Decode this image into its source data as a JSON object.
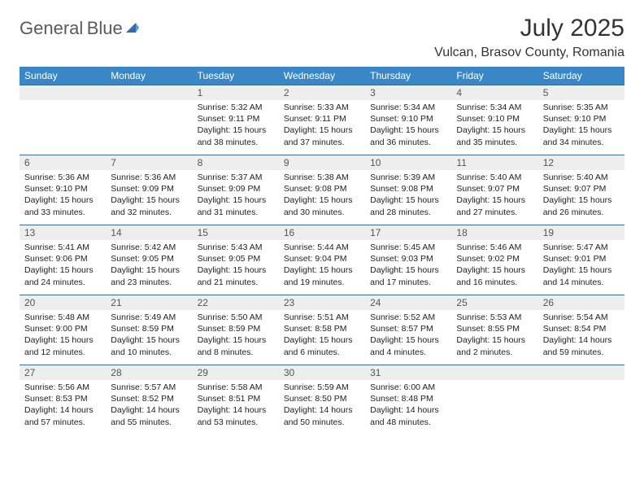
{
  "brand": {
    "word1": "General",
    "word2": "Blue"
  },
  "title": "July 2025",
  "subtitle": "Vulcan, Brasov County, Romania",
  "colors": {
    "header_bg": "#3a87c7",
    "header_text": "#ffffff",
    "daynum_bg": "#eeeeee",
    "daynum_border": "#3a6a8f",
    "brand_accent": "#3a7fc4",
    "text": "#222222"
  },
  "typography": {
    "title_fontsize": 30,
    "subtitle_fontsize": 16,
    "dayheader_fontsize": 12,
    "cell_fontsize": 10.5
  },
  "day_headers": [
    "Sunday",
    "Monday",
    "Tuesday",
    "Wednesday",
    "Thursday",
    "Friday",
    "Saturday"
  ],
  "weeks": [
    [
      null,
      null,
      {
        "n": "1",
        "sr": "5:32 AM",
        "ss": "9:11 PM",
        "dl": "15 hours and 38 minutes."
      },
      {
        "n": "2",
        "sr": "5:33 AM",
        "ss": "9:11 PM",
        "dl": "15 hours and 37 minutes."
      },
      {
        "n": "3",
        "sr": "5:34 AM",
        "ss": "9:10 PM",
        "dl": "15 hours and 36 minutes."
      },
      {
        "n": "4",
        "sr": "5:34 AM",
        "ss": "9:10 PM",
        "dl": "15 hours and 35 minutes."
      },
      {
        "n": "5",
        "sr": "5:35 AM",
        "ss": "9:10 PM",
        "dl": "15 hours and 34 minutes."
      }
    ],
    [
      {
        "n": "6",
        "sr": "5:36 AM",
        "ss": "9:10 PM",
        "dl": "15 hours and 33 minutes."
      },
      {
        "n": "7",
        "sr": "5:36 AM",
        "ss": "9:09 PM",
        "dl": "15 hours and 32 minutes."
      },
      {
        "n": "8",
        "sr": "5:37 AM",
        "ss": "9:09 PM",
        "dl": "15 hours and 31 minutes."
      },
      {
        "n": "9",
        "sr": "5:38 AM",
        "ss": "9:08 PM",
        "dl": "15 hours and 30 minutes."
      },
      {
        "n": "10",
        "sr": "5:39 AM",
        "ss": "9:08 PM",
        "dl": "15 hours and 28 minutes."
      },
      {
        "n": "11",
        "sr": "5:40 AM",
        "ss": "9:07 PM",
        "dl": "15 hours and 27 minutes."
      },
      {
        "n": "12",
        "sr": "5:40 AM",
        "ss": "9:07 PM",
        "dl": "15 hours and 26 minutes."
      }
    ],
    [
      {
        "n": "13",
        "sr": "5:41 AM",
        "ss": "9:06 PM",
        "dl": "15 hours and 24 minutes."
      },
      {
        "n": "14",
        "sr": "5:42 AM",
        "ss": "9:05 PM",
        "dl": "15 hours and 23 minutes."
      },
      {
        "n": "15",
        "sr": "5:43 AM",
        "ss": "9:05 PM",
        "dl": "15 hours and 21 minutes."
      },
      {
        "n": "16",
        "sr": "5:44 AM",
        "ss": "9:04 PM",
        "dl": "15 hours and 19 minutes."
      },
      {
        "n": "17",
        "sr": "5:45 AM",
        "ss": "9:03 PM",
        "dl": "15 hours and 17 minutes."
      },
      {
        "n": "18",
        "sr": "5:46 AM",
        "ss": "9:02 PM",
        "dl": "15 hours and 16 minutes."
      },
      {
        "n": "19",
        "sr": "5:47 AM",
        "ss": "9:01 PM",
        "dl": "15 hours and 14 minutes."
      }
    ],
    [
      {
        "n": "20",
        "sr": "5:48 AM",
        "ss": "9:00 PM",
        "dl": "15 hours and 12 minutes."
      },
      {
        "n": "21",
        "sr": "5:49 AM",
        "ss": "8:59 PM",
        "dl": "15 hours and 10 minutes."
      },
      {
        "n": "22",
        "sr": "5:50 AM",
        "ss": "8:59 PM",
        "dl": "15 hours and 8 minutes."
      },
      {
        "n": "23",
        "sr": "5:51 AM",
        "ss": "8:58 PM",
        "dl": "15 hours and 6 minutes."
      },
      {
        "n": "24",
        "sr": "5:52 AM",
        "ss": "8:57 PM",
        "dl": "15 hours and 4 minutes."
      },
      {
        "n": "25",
        "sr": "5:53 AM",
        "ss": "8:55 PM",
        "dl": "15 hours and 2 minutes."
      },
      {
        "n": "26",
        "sr": "5:54 AM",
        "ss": "8:54 PM",
        "dl": "14 hours and 59 minutes."
      }
    ],
    [
      {
        "n": "27",
        "sr": "5:56 AM",
        "ss": "8:53 PM",
        "dl": "14 hours and 57 minutes."
      },
      {
        "n": "28",
        "sr": "5:57 AM",
        "ss": "8:52 PM",
        "dl": "14 hours and 55 minutes."
      },
      {
        "n": "29",
        "sr": "5:58 AM",
        "ss": "8:51 PM",
        "dl": "14 hours and 53 minutes."
      },
      {
        "n": "30",
        "sr": "5:59 AM",
        "ss": "8:50 PM",
        "dl": "14 hours and 50 minutes."
      },
      {
        "n": "31",
        "sr": "6:00 AM",
        "ss": "8:48 PM",
        "dl": "14 hours and 48 minutes."
      },
      null,
      null
    ]
  ],
  "labels": {
    "sunrise": "Sunrise:",
    "sunset": "Sunset:",
    "daylight": "Daylight:"
  }
}
